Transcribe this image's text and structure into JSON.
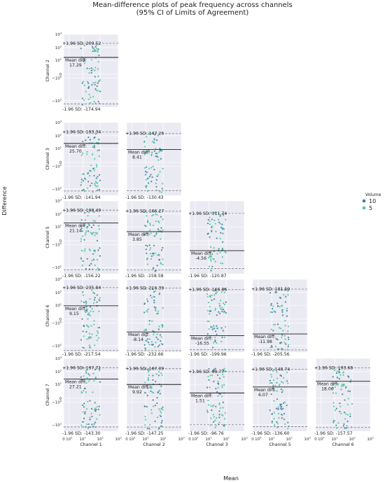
{
  "title": "Mean-difference plots of peak frequency across channels",
  "subtitle": "(95% CI of Limits of Agreement)",
  "xlabel": "Mean",
  "ylabel": "Difference",
  "legend": {
    "title": "Volume",
    "entries": [
      {
        "label": "10",
        "color": "#3d7f9e"
      },
      {
        "label": "5",
        "color": "#4fc7a0"
      }
    ]
  },
  "colors": {
    "background": "#eaeaf2",
    "grid": "#ffffff",
    "mean_line": "#1a1a1a",
    "loa_line": "#7f7f7f"
  },
  "x_ticks": [
    "0",
    "10",
    "10",
    "10",
    "10"
  ],
  "x_tick_sups": [
    "",
    "0",
    "1",
    "2",
    "3"
  ],
  "y_ticks": [
    "10",
    "10",
    "10",
    "0",
    "−10",
    "−10"
  ],
  "y_tick_sups": [
    "3",
    "2",
    "1",
    "",
    "0",
    "2"
  ],
  "chart_data": {
    "type": "scatter",
    "layout": "lower-triangle grid",
    "xscale": "symlog",
    "yscale": "symlog",
    "xlim": [
      0,
      1000
    ],
    "ylim": [
      -300,
      1000
    ],
    "mean_label": "Mean diff:",
    "upper_label": "+1.96 SD:",
    "lower_label": "-1.96 SD:",
    "rows": [
      {
        "label": "Channel 2",
        "panels": [
          {
            "col_label": "Channel 1",
            "mean": "17.29",
            "upper": "209.52",
            "lower": "-174.94"
          }
        ]
      },
      {
        "label": "Channel 3",
        "panels": [
          {
            "col_label": "Channel 1",
            "mean": "25.70",
            "upper": "193.34",
            "lower": "-141.94"
          },
          {
            "col_label": "Channel 2",
            "mean": "8.41",
            "upper": "147.26",
            "lower": "-130.43"
          }
        ]
      },
      {
        "label": "Channel 5",
        "panels": [
          {
            "col_label": "Channel 1",
            "mean": "21.14",
            "upper": "198.49",
            "lower": "-156.22"
          },
          {
            "col_label": "Channel 2",
            "mean": "3.85",
            "upper": "166.27",
            "lower": "-158.58"
          },
          {
            "col_label": "Channel 3",
            "mean": "-4.56",
            "upper": "111.74",
            "lower": "-120.87"
          }
        ]
      },
      {
        "label": "Channel 6",
        "panels": [
          {
            "col_label": "Channel 1",
            "mean": "9.15",
            "upper": "235.84",
            "lower": "-217.54"
          },
          {
            "col_label": "Channel 2",
            "mean": "-8.14",
            "upper": "216.39",
            "lower": "-232.66"
          },
          {
            "col_label": "Channel 3",
            "mean": "-16.55",
            "upper": "166.86",
            "lower": "-199.96"
          },
          {
            "col_label": "Channel 5",
            "mean": "-11.98",
            "upper": "181.59",
            "lower": "-205.56"
          }
        ]
      },
      {
        "label": "Channel 7",
        "panels": [
          {
            "col_label": "Channel 1",
            "mean": "27.21",
            "upper": "197.71",
            "lower": "-143.30"
          },
          {
            "col_label": "Channel 2",
            "mean": "9.92",
            "upper": "167.09",
            "lower": "-147.25"
          },
          {
            "col_label": "Channel 3",
            "mean": "1.51",
            "upper": "99.77",
            "lower": "-96.76"
          },
          {
            "col_label": "Channel 5",
            "mean": "6.07",
            "upper": "148.74",
            "lower": "-136.60"
          },
          {
            "col_label": "Channel 6",
            "mean": "18.06",
            "upper": "193.68",
            "lower": "-157.57"
          }
        ]
      }
    ]
  }
}
